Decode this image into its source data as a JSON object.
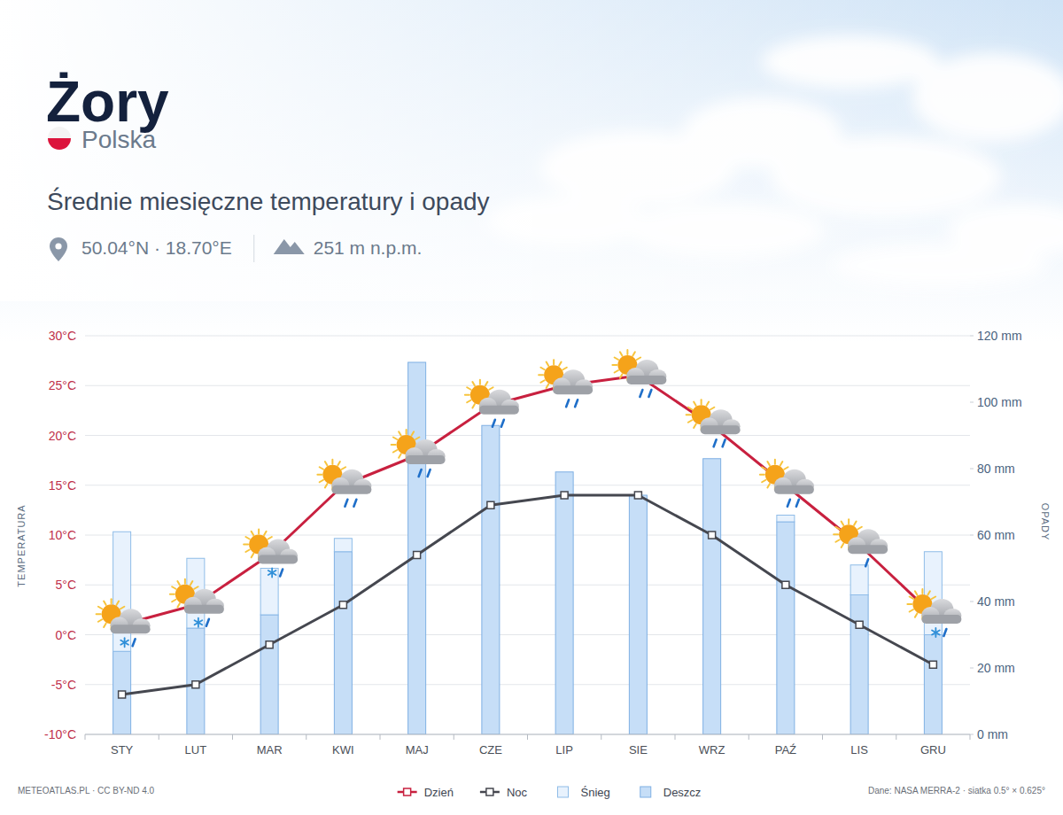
{
  "chart_data": {
    "type": "bar",
    "title": "Żory",
    "country": "Polska",
    "subtitle": "Średnie miesięczne temperatury i opady",
    "coordinates": "50.04°N · 18.70°E",
    "elevation": "251 m n.p.m.",
    "y_label": "TEMPERATURA",
    "y2_label": "OPADY",
    "source": "METEOATLAS.PL · CC BY-ND 4.0",
    "credit": "Dane: NASA MERRA-2 · siatka 0.5° × 0.625°",
    "categories": [
      "STY",
      "LUT",
      "MAR",
      "KWI",
      "MAJ",
      "CZE",
      "LIP",
      "SIE",
      "WRZ",
      "PAŹ",
      "LIS",
      "GRU"
    ],
    "stacked": true,
    "grid": true,
    "legend": "bottom",
    "ylim": [
      -10,
      30
    ],
    "yticks": [
      {
        "value": -10,
        "label": "-10°C"
      },
      {
        "value": -5,
        "label": "-5°C"
      },
      {
        "value": 0,
        "label": "0°C"
      },
      {
        "value": 5,
        "label": "5°C"
      },
      {
        "value": 10,
        "label": "10°C"
      },
      {
        "value": 15,
        "label": "15°C"
      },
      {
        "value": 20,
        "label": "20°C"
      },
      {
        "value": 25,
        "label": "25°C"
      },
      {
        "value": 30,
        "label": "30°C"
      }
    ],
    "y2lim": [
      0,
      120
    ],
    "y2ticks": [
      {
        "value": 0,
        "label": "0 mm"
      },
      {
        "value": 20,
        "label": "20 mm"
      },
      {
        "value": 40,
        "label": "40 mm"
      },
      {
        "value": 60,
        "label": "60 mm"
      },
      {
        "value": 80,
        "label": "80 mm"
      },
      {
        "value": 100,
        "label": "100 mm"
      },
      {
        "value": 120,
        "label": "120 mm"
      }
    ],
    "series": [
      {
        "name": "Dzień",
        "type": "line",
        "color": "#c8203f",
        "marker": "square",
        "values": [
          1,
          3,
          8,
          15,
          18,
          23,
          25,
          26,
          21,
          15,
          9,
          2
        ]
      },
      {
        "name": "Noc",
        "type": "line",
        "color": "#45474f",
        "marker": "square",
        "values": [
          -6,
          -5,
          -1,
          3,
          8,
          13,
          14,
          14,
          10,
          5,
          1,
          -3
        ]
      },
      {
        "name": "Śnieg",
        "type": "bar",
        "axis": "y2",
        "color": "#e8f2fd",
        "values": [
          36,
          21,
          14,
          4,
          0,
          0,
          0,
          0,
          0,
          2,
          9,
          25
        ]
      },
      {
        "name": "Deszcz",
        "type": "bar",
        "axis": "y2",
        "color": "#c6def7",
        "values": [
          25,
          32,
          36,
          55,
          112,
          93,
          79,
          72,
          83,
          64,
          42,
          30
        ]
      }
    ]
  }
}
